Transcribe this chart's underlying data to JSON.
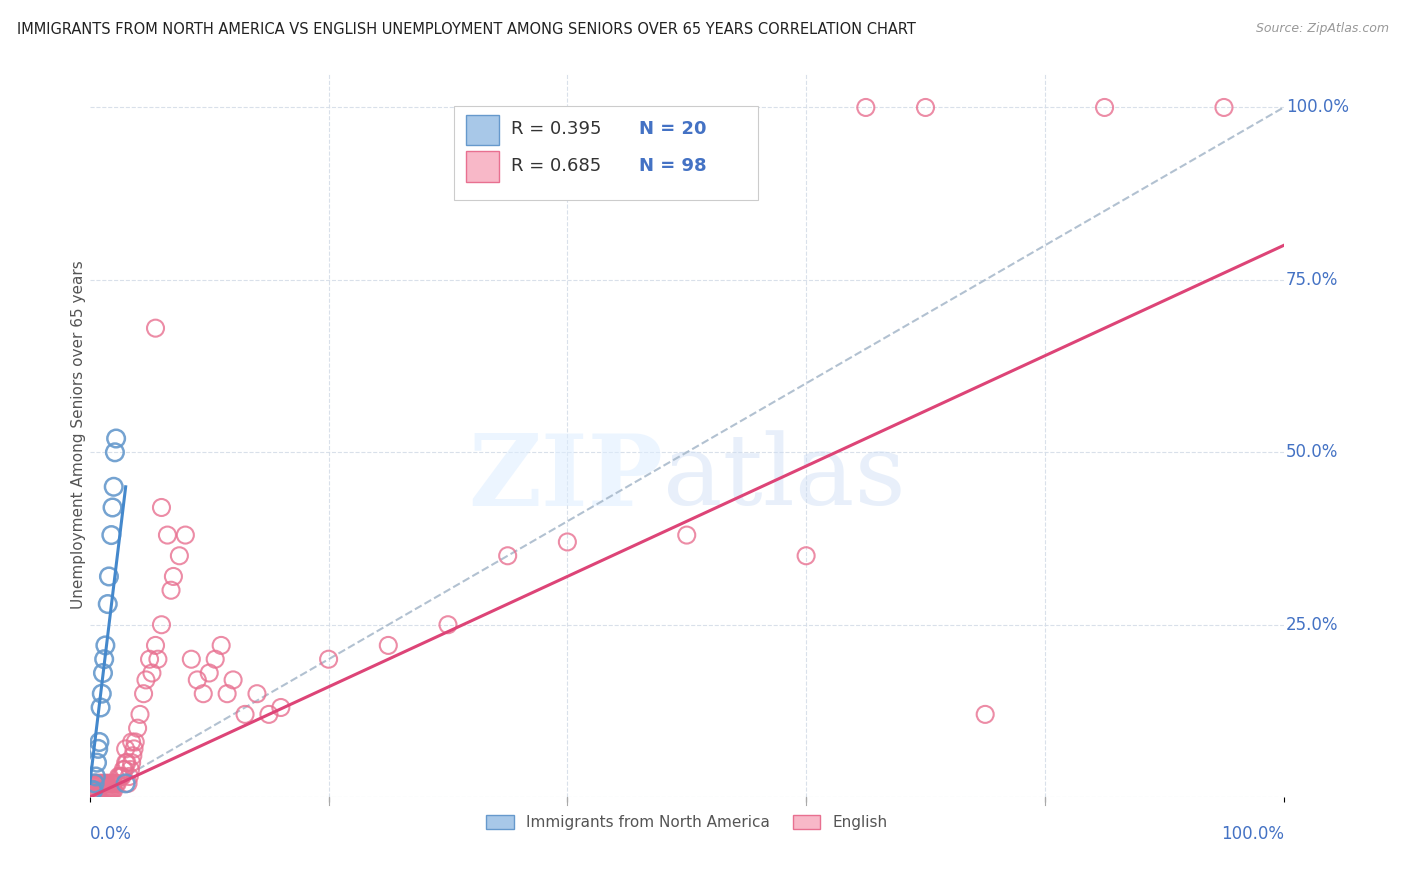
{
  "title": "IMMIGRANTS FROM NORTH AMERICA VS ENGLISH UNEMPLOYMENT AMONG SENIORS OVER 65 YEARS CORRELATION CHART",
  "source": "Source: ZipAtlas.com",
  "ylabel": "Unemployment Among Seniors over 65 years",
  "legend_label_blue": "Immigrants from North America",
  "legend_label_pink": "English",
  "color_blue_fill": "#a8c8e8",
  "color_blue_edge": "#6699cc",
  "color_pink_fill": "#f8b8c8",
  "color_pink_edge": "#e87090",
  "color_blue_line": "#4488cc",
  "color_pink_line": "#dd4477",
  "color_dashed_line": "#aabbcc",
  "color_axis_labels": "#4472c4",
  "color_title": "#222222",
  "color_source": "#999999",
  "color_grid": "#d5dde8",
  "blue_scatter": [
    [
      0.002,
      0.01
    ],
    [
      0.003,
      0.01
    ],
    [
      0.004,
      0.02
    ],
    [
      0.005,
      0.03
    ],
    [
      0.006,
      0.05
    ],
    [
      0.007,
      0.07
    ],
    [
      0.008,
      0.08
    ],
    [
      0.009,
      0.13
    ],
    [
      0.01,
      0.15
    ],
    [
      0.011,
      0.18
    ],
    [
      0.012,
      0.2
    ],
    [
      0.013,
      0.22
    ],
    [
      0.015,
      0.28
    ],
    [
      0.016,
      0.32
    ],
    [
      0.018,
      0.38
    ],
    [
      0.019,
      0.42
    ],
    [
      0.02,
      0.45
    ],
    [
      0.021,
      0.5
    ],
    [
      0.022,
      0.52
    ],
    [
      0.03,
      0.02
    ]
  ],
  "pink_scatter": [
    [
      0.001,
      0.01
    ],
    [
      0.002,
      0.01
    ],
    [
      0.002,
      0.01
    ],
    [
      0.003,
      0.01
    ],
    [
      0.003,
      0.01
    ],
    [
      0.004,
      0.01
    ],
    [
      0.004,
      0.02
    ],
    [
      0.005,
      0.01
    ],
    [
      0.005,
      0.02
    ],
    [
      0.006,
      0.01
    ],
    [
      0.006,
      0.02
    ],
    [
      0.007,
      0.01
    ],
    [
      0.007,
      0.02
    ],
    [
      0.008,
      0.01
    ],
    [
      0.008,
      0.02
    ],
    [
      0.009,
      0.01
    ],
    [
      0.009,
      0.02
    ],
    [
      0.01,
      0.01
    ],
    [
      0.01,
      0.02
    ],
    [
      0.011,
      0.01
    ],
    [
      0.011,
      0.02
    ],
    [
      0.012,
      0.01
    ],
    [
      0.012,
      0.02
    ],
    [
      0.013,
      0.01
    ],
    [
      0.013,
      0.02
    ],
    [
      0.014,
      0.01
    ],
    [
      0.014,
      0.02
    ],
    [
      0.015,
      0.01
    ],
    [
      0.015,
      0.02
    ],
    [
      0.016,
      0.01
    ],
    [
      0.016,
      0.02
    ],
    [
      0.017,
      0.01
    ],
    [
      0.017,
      0.02
    ],
    [
      0.018,
      0.01
    ],
    [
      0.018,
      0.02
    ],
    [
      0.019,
      0.01
    ],
    [
      0.019,
      0.02
    ],
    [
      0.02,
      0.01
    ],
    [
      0.02,
      0.02
    ],
    [
      0.022,
      0.02
    ],
    [
      0.023,
      0.02
    ],
    [
      0.024,
      0.03
    ],
    [
      0.025,
      0.03
    ],
    [
      0.026,
      0.03
    ],
    [
      0.027,
      0.03
    ],
    [
      0.028,
      0.04
    ],
    [
      0.029,
      0.04
    ],
    [
      0.03,
      0.05
    ],
    [
      0.031,
      0.05
    ],
    [
      0.032,
      0.02
    ],
    [
      0.033,
      0.03
    ],
    [
      0.034,
      0.04
    ],
    [
      0.035,
      0.05
    ],
    [
      0.036,
      0.06
    ],
    [
      0.037,
      0.07
    ],
    [
      0.038,
      0.08
    ],
    [
      0.04,
      0.1
    ],
    [
      0.042,
      0.12
    ],
    [
      0.045,
      0.15
    ],
    [
      0.047,
      0.17
    ],
    [
      0.05,
      0.2
    ],
    [
      0.052,
      0.18
    ],
    [
      0.055,
      0.22
    ],
    [
      0.055,
      0.68
    ],
    [
      0.057,
      0.2
    ],
    [
      0.06,
      0.25
    ],
    [
      0.06,
      0.42
    ],
    [
      0.065,
      0.38
    ],
    [
      0.068,
      0.3
    ],
    [
      0.07,
      0.32
    ],
    [
      0.075,
      0.35
    ],
    [
      0.08,
      0.38
    ],
    [
      0.085,
      0.2
    ],
    [
      0.09,
      0.17
    ],
    [
      0.095,
      0.15
    ],
    [
      0.1,
      0.18
    ],
    [
      0.105,
      0.2
    ],
    [
      0.11,
      0.22
    ],
    [
      0.115,
      0.15
    ],
    [
      0.12,
      0.17
    ],
    [
      0.13,
      0.12
    ],
    [
      0.14,
      0.15
    ],
    [
      0.15,
      0.12
    ],
    [
      0.16,
      0.13
    ],
    [
      0.2,
      0.2
    ],
    [
      0.25,
      0.22
    ],
    [
      0.3,
      0.25
    ],
    [
      0.35,
      0.35
    ],
    [
      0.4,
      0.37
    ],
    [
      0.5,
      0.38
    ],
    [
      0.6,
      0.35
    ],
    [
      0.65,
      1.0
    ],
    [
      0.7,
      1.0
    ],
    [
      0.75,
      0.12
    ],
    [
      0.85,
      1.0
    ],
    [
      0.95,
      1.0
    ],
    [
      0.03,
      0.07
    ],
    [
      0.035,
      0.08
    ]
  ],
  "blue_line_x": [
    0.0,
    0.03
  ],
  "blue_line_y": [
    0.02,
    0.45
  ],
  "pink_line_x": [
    0.0,
    1.0
  ],
  "pink_line_y": [
    0.0,
    0.8
  ],
  "xlim": [
    0,
    1.0
  ],
  "ylim": [
    0,
    1.05
  ],
  "xtick_positions": [
    0.0,
    0.2,
    0.4,
    0.6,
    0.8,
    1.0
  ],
  "ytick_positions": [
    0.0,
    0.25,
    0.5,
    0.75,
    1.0
  ],
  "ytick_labels_right": [
    "",
    "25.0%",
    "50.0%",
    "75.0%",
    "100.0%"
  ],
  "legend_r_blue": "R = 0.395",
  "legend_n_blue": "N = 20",
  "legend_r_pink": "R = 0.685",
  "legend_n_pink": "N = 98"
}
